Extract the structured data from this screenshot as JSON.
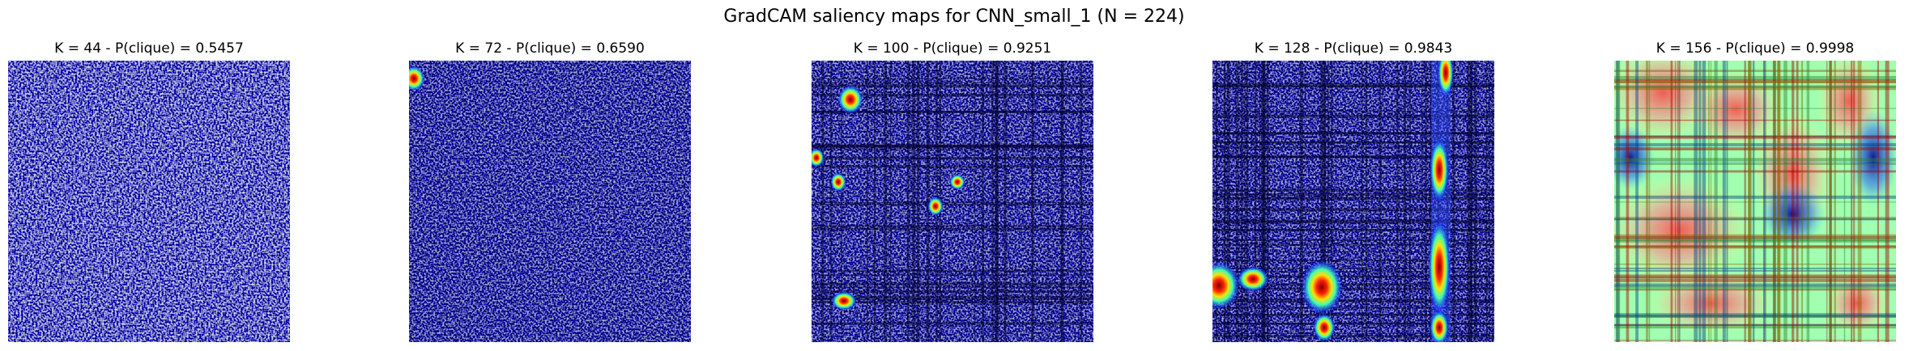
{
  "title": "GradCAM saliency maps for CNN_small_1 (N = 224)",
  "panels": [
    {
      "title": "K = 44 - P(clique) = 0.5457"
    },
    {
      "title": "K = 72 - P(clique) = 0.6590"
    },
    {
      "title": "K = 100 - P(clique) = 0.9251"
    },
    {
      "title": "K = 128 - P(clique) = 0.9843"
    },
    {
      "title": "K = 156 - P(clique) = 0.9998"
    }
  ]
}
